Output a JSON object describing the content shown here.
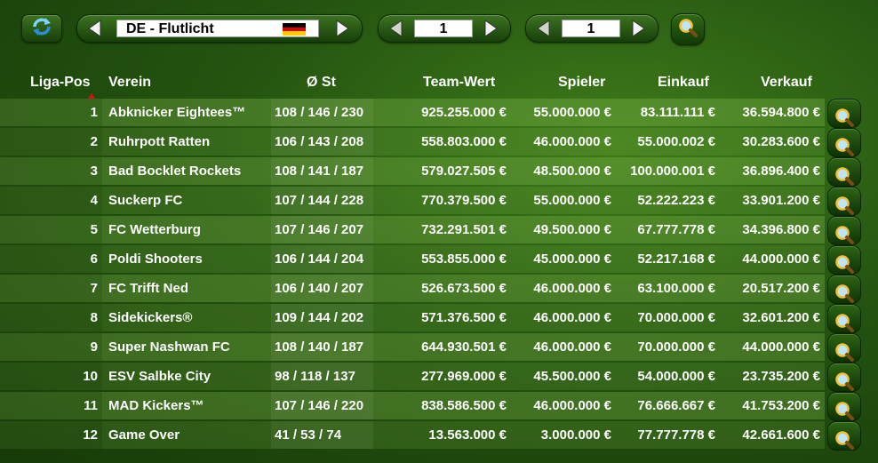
{
  "toolbar": {
    "league_name": "DE - Flutlicht",
    "league_flag_icon": "germany-flag-icon",
    "spinner_a_value": "1",
    "spinner_b_value": "1",
    "refresh_icon": "refresh-icon",
    "search_icon": "magnifier-icon",
    "colors": {
      "accent_green": "#3d7320",
      "flag_black": "#000000",
      "flag_red": "#dd0000",
      "flag_gold": "#ffce00"
    }
  },
  "table": {
    "headers": {
      "pos": "Liga-Pos",
      "club": "Verein",
      "st": "Ø St",
      "team_value": "Team-Wert",
      "players": "Spieler",
      "buy": "Einkauf",
      "sell": "Verkauf"
    },
    "sort_indicator_color": "#d31212",
    "rows": [
      {
        "pos": "1",
        "club": "Abknicker Eightees™",
        "st": "108 / 146 / 230",
        "team_value": "925.255.000 €",
        "players": "55.000.000 €",
        "buy": "83.111.111 €",
        "sell": "36.594.800 €"
      },
      {
        "pos": "2",
        "club": "Ruhrpott Ratten",
        "st": "106 / 143 / 208",
        "team_value": "558.803.000 €",
        "players": "46.000.000 €",
        "buy": "55.000.002 €",
        "sell": "30.283.600 €"
      },
      {
        "pos": "3",
        "club": "Bad Bocklet Rockets",
        "st": "108 / 141 / 187",
        "team_value": "579.027.505 €",
        "players": "48.500.000 €",
        "buy": "100.000.001 €",
        "sell": "36.896.400 €"
      },
      {
        "pos": "4",
        "club": "Suckerp FC",
        "st": "107 / 144 / 228",
        "team_value": "770.379.500 €",
        "players": "55.000.000 €",
        "buy": "52.222.223 €",
        "sell": "33.901.200 €"
      },
      {
        "pos": "5",
        "club": "FC Wetterburg",
        "st": "107 / 146 / 207",
        "team_value": "732.291.501 €",
        "players": "49.500.000 €",
        "buy": "67.777.778 €",
        "sell": "34.396.800 €"
      },
      {
        "pos": "6",
        "club": "Poldi Shooters",
        "st": "106 / 144 / 204",
        "team_value": "553.855.000 €",
        "players": "45.000.000 €",
        "buy": "52.217.168 €",
        "sell": "44.000.000 €"
      },
      {
        "pos": "7",
        "club": "FC Trifft Ned",
        "st": "106 / 140 / 207",
        "team_value": "526.673.500 €",
        "players": "46.000.000 €",
        "buy": "63.100.000 €",
        "sell": "20.517.200 €"
      },
      {
        "pos": "8",
        "club": "Sidekickers®",
        "st": "109 / 144 / 202",
        "team_value": "571.376.500 €",
        "players": "46.000.000 €",
        "buy": "70.000.000 €",
        "sell": "32.601.200 €"
      },
      {
        "pos": "9",
        "club": "Super Nashwan FC",
        "st": "108 / 140 / 187",
        "team_value": "644.930.501 €",
        "players": "46.000.000 €",
        "buy": "70.000.000 €",
        "sell": "44.000.000 €"
      },
      {
        "pos": "10",
        "club": "ESV Salbke City",
        "st": "98 / 118 / 137",
        "team_value": "277.969.000 €",
        "players": "45.500.000 €",
        "buy": "54.000.000 €",
        "sell": "23.735.200 €"
      },
      {
        "pos": "11",
        "club": "MAD Kickers™",
        "st": "107 / 146 / 220",
        "team_value": "838.586.500 €",
        "players": "46.000.000 €",
        "buy": "76.666.667 €",
        "sell": "41.753.200 €"
      },
      {
        "pos": "12",
        "club": "Game Over",
        "st": "41 / 53 / 74",
        "team_value": "13.563.000 €",
        "players": "3.000.000 €",
        "buy": "77.777.778 €",
        "sell": "42.661.600 €"
      }
    ]
  }
}
